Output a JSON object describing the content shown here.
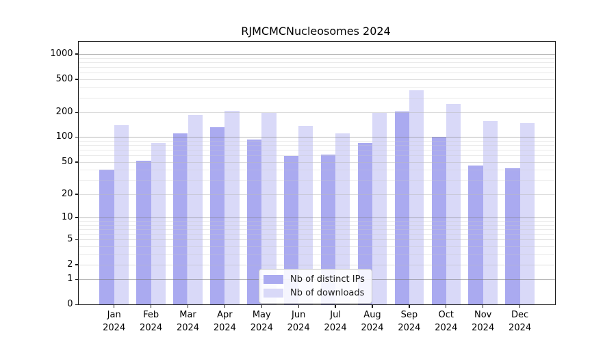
{
  "figure": {
    "title": "RJMCMCNucleosomes 2024",
    "background_color": "#ffffff"
  },
  "legend": {
    "items": [
      {
        "label": "Nb of distinct IPs",
        "color": "#aaaaf0"
      },
      {
        "label": "Nb of downloads",
        "color": "#d9d9f8"
      }
    ],
    "position": "lower center"
  },
  "chart_data": {
    "type": "bar",
    "title": "RJMCMCNucleosomes 2024",
    "xlabel": "",
    "ylabel": "",
    "yscale": "log10(1+y)",
    "grid": true,
    "ylim": [
      0,
      1420
    ],
    "yticks": [
      0,
      1,
      2,
      5,
      10,
      20,
      50,
      100,
      200,
      500,
      1000
    ],
    "categories": [
      {
        "month": "Jan",
        "year": "2024"
      },
      {
        "month": "Feb",
        "year": "2024"
      },
      {
        "month": "Mar",
        "year": "2024"
      },
      {
        "month": "Apr",
        "year": "2024"
      },
      {
        "month": "May",
        "year": "2024"
      },
      {
        "month": "Jun",
        "year": "2024"
      },
      {
        "month": "Jul",
        "year": "2024"
      },
      {
        "month": "Aug",
        "year": "2024"
      },
      {
        "month": "Sep",
        "year": "2024"
      },
      {
        "month": "Oct",
        "year": "2024"
      },
      {
        "month": "Nov",
        "year": "2024"
      },
      {
        "month": "Dec",
        "year": "2024"
      }
    ],
    "series": [
      {
        "name": "Nb of distinct IPs",
        "color": "#aaaaf0",
        "values": [
          40,
          52,
          111,
          132,
          94,
          59,
          61,
          85,
          205,
          100,
          45,
          42
        ]
      },
      {
        "name": "Nb of downloads",
        "color": "#d9d9f8",
        "values": [
          140,
          85,
          187,
          209,
          195,
          136,
          112,
          195,
          368,
          253,
          157,
          147
        ]
      }
    ]
  }
}
